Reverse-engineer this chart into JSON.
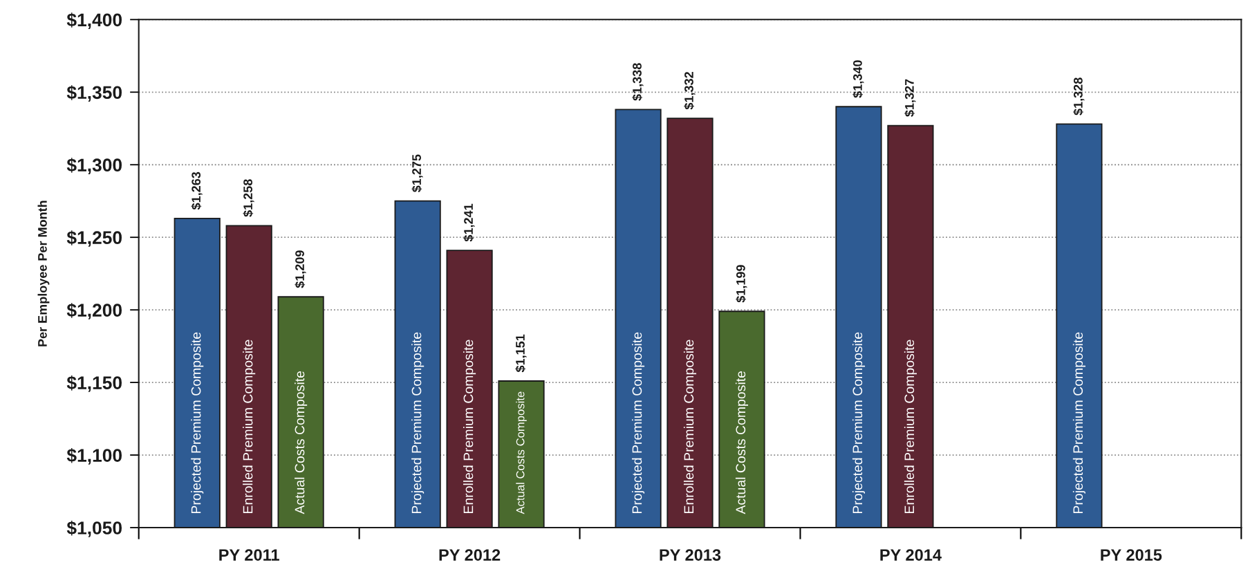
{
  "chart_data": {
    "type": "bar",
    "ylabel": "Per Employee Per Month",
    "categories": [
      "PY 2011",
      "PY 2012",
      "PY 2013",
      "PY 2014",
      "PY 2015"
    ],
    "series": [
      {
        "name": "Projected Premium Composite",
        "color": "#2e5b93",
        "values": [
          1263,
          1275,
          1338,
          1340,
          1328
        ],
        "value_labels": [
          "$1,263",
          "$1,275",
          "$1,338",
          "$1,340",
          "$1,328"
        ]
      },
      {
        "name": "Enrolled Premium Composite",
        "color": "#5e2531",
        "values": [
          1258,
          1241,
          1332,
          1327,
          null
        ],
        "value_labels": [
          "$1,258",
          "$1,241",
          "$1,332",
          "$1,327",
          null
        ]
      },
      {
        "name": "Actual Costs Composite",
        "color": "#4a6a2e",
        "values": [
          1209,
          1151,
          1199,
          null,
          null
        ],
        "value_labels": [
          "$1,209",
          "$1,151",
          "$1,199",
          null,
          null
        ]
      }
    ],
    "ylim": [
      1050,
      1400
    ],
    "yticks": [
      {
        "value": 1050,
        "label": "$1,050"
      },
      {
        "value": 1100,
        "label": "$1,100"
      },
      {
        "value": 1150,
        "label": "$1,150"
      },
      {
        "value": 1200,
        "label": "$1,200"
      },
      {
        "value": 1250,
        "label": "$1,250"
      },
      {
        "value": 1300,
        "label": "$1,300"
      },
      {
        "value": 1350,
        "label": "$1,350"
      },
      {
        "value": 1400,
        "label": "$1,400"
      }
    ],
    "grid": "y",
    "legend": false
  }
}
